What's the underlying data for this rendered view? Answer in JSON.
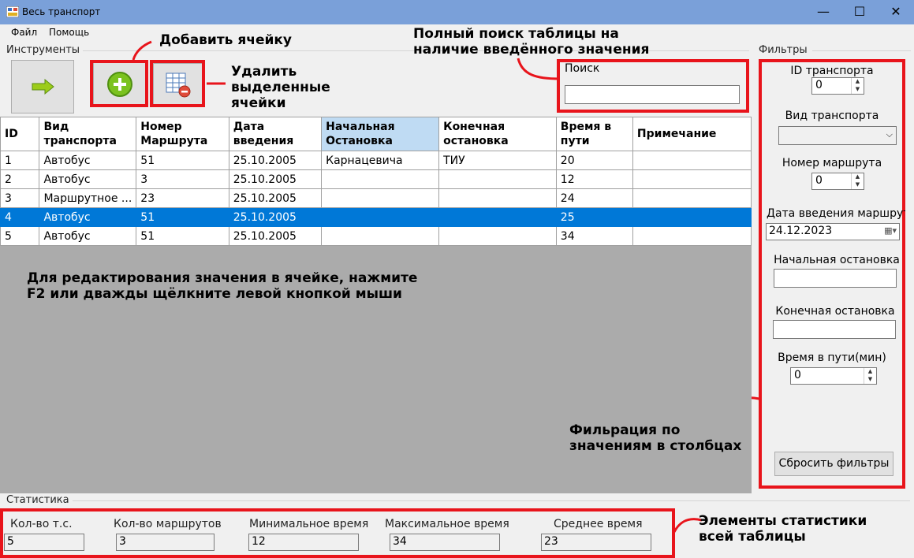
{
  "window": {
    "title": "Весь транспорт",
    "minimize": "—",
    "maximize": "☐",
    "close": "✕"
  },
  "menu": {
    "file": "Файл",
    "help": "Помощь"
  },
  "tools": {
    "label": "Инструменты"
  },
  "search": {
    "label": "Поиск",
    "value": ""
  },
  "annotations": {
    "add_cell": "Добавить ячейку",
    "delete_cells": "Удалить выделенные ячейки",
    "full_search": "Полный поиск таблицы на наличие введённого значения",
    "edit_hint": "Для редактирования значения в ячейке, нажмите F2 или дважды щёлкните левой кнопкой мыши",
    "filter_hint": "Фильрация по значениям в столбцах",
    "stats_hint": "Элементы статистики всей таблицы"
  },
  "table": {
    "headers": [
      "ID",
      "Вид транспорта",
      "Номер Маршрута",
      "Дата введения",
      "Начальная Остановка",
      "Конечная остановка",
      "Время в пути",
      "Примечание"
    ],
    "rows": [
      [
        "1",
        "Автобус",
        "51",
        "25.10.2005",
        "Карнацевича",
        "ТИУ",
        "20",
        ""
      ],
      [
        "2",
        "Автобус",
        "3",
        "25.10.2005",
        "",
        "",
        "12",
        ""
      ],
      [
        "3",
        "Маршрутное ...",
        "23",
        "25.10.2005",
        "",
        "",
        "24",
        ""
      ],
      [
        "4",
        "Автобус",
        "51",
        "25.10.2005",
        "",
        "",
        "25",
        ""
      ],
      [
        "5",
        "Автобус",
        "51",
        "25.10.2005",
        "",
        "",
        "34",
        ""
      ]
    ],
    "selected_row": 3
  },
  "filters": {
    "label": "Фильтры",
    "id_label": "ID транспорта",
    "id_value": "0",
    "type_label": "Вид транспорта",
    "type_value": "",
    "route_label": "Номер маршрута",
    "route_value": "0",
    "date_label": "Дата введения маршрута",
    "date_value": "24.12.2023",
    "start_label": "Начальная остановка",
    "start_value": "",
    "end_label": "Конечная остановка",
    "end_value": "",
    "time_label": "Время в пути(мин)",
    "time_value": "0",
    "reset_label": "Сбросить фильтры"
  },
  "stats": {
    "label": "Статистика",
    "count_label": "Кол-во т.с.",
    "count_value": "5",
    "routes_label": "Кол-во маршрутов",
    "routes_value": "3",
    "min_label": "Минимальное время",
    "min_value": "12",
    "max_label": "Максимальное время",
    "max_value": "34",
    "avg_label": "Среднее время",
    "avg_value": "23"
  },
  "colors": {
    "titlebar": "#7aa0d9",
    "highlight": "#e8141b",
    "selection": "#0078d7",
    "grid_bg": "#ababab"
  }
}
